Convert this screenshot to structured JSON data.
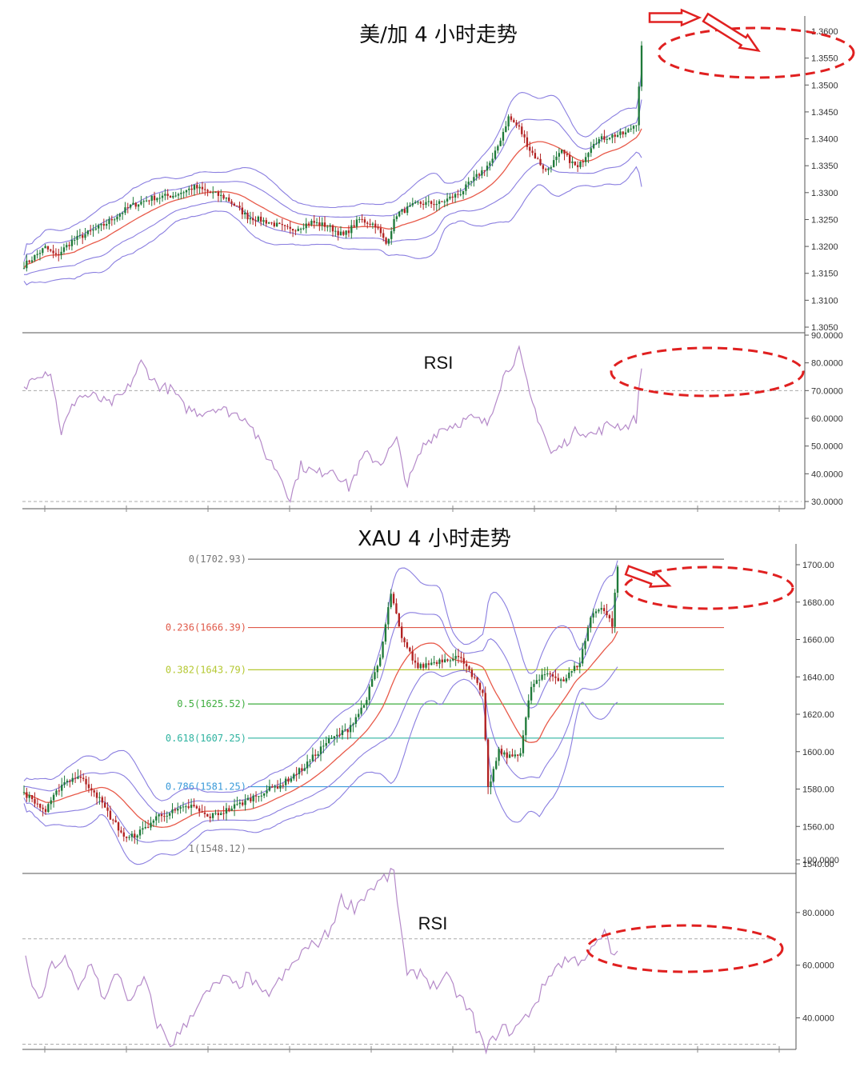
{
  "colors": {
    "bull": "#1f7a3a",
    "bear": "#b22222",
    "band": "#8a7ee0",
    "mid": "#e85a4a",
    "rsi": "#b58ac9",
    "annot": "#e02020",
    "axis": "#444444",
    "grid_dash": "#aaaaaa"
  },
  "chart_data": [
    {
      "type": "candlestick",
      "title": "美/加 4 小时走势",
      "ylim": [
        1.305,
        1.36
      ],
      "yticks": [
        "1.3050",
        "1.3100",
        "1.3150",
        "1.3200",
        "1.3250",
        "1.3300",
        "1.3350",
        "1.3400",
        "1.3450",
        "1.3500",
        "1.3550",
        "1.3600"
      ],
      "indicators": [
        "bollinger",
        "moving-average"
      ],
      "close_anchors": [
        [
          0,
          1.3165
        ],
        [
          8,
          1.3198
        ],
        [
          12,
          1.3182
        ],
        [
          18,
          1.321
        ],
        [
          30,
          1.324
        ],
        [
          40,
          1.3275
        ],
        [
          48,
          1.329
        ],
        [
          56,
          1.3295
        ],
        [
          64,
          1.331
        ],
        [
          70,
          1.33
        ],
        [
          76,
          1.329
        ],
        [
          84,
          1.3255
        ],
        [
          92,
          1.3245
        ],
        [
          100,
          1.323
        ],
        [
          108,
          1.3245
        ],
        [
          114,
          1.3238
        ],
        [
          120,
          1.322
        ],
        [
          126,
          1.325
        ],
        [
          132,
          1.324
        ],
        [
          136,
          1.3205
        ],
        [
          140,
          1.326
        ],
        [
          148,
          1.328
        ],
        [
          156,
          1.328
        ],
        [
          164,
          1.33
        ],
        [
          170,
          1.333
        ],
        [
          176,
          1.336
        ],
        [
          182,
          1.344
        ],
        [
          186,
          1.342
        ],
        [
          190,
          1.338
        ],
        [
          196,
          1.334
        ],
        [
          202,
          1.3375
        ],
        [
          208,
          1.3345
        ],
        [
          214,
          1.3395
        ],
        [
          220,
          1.3405
        ],
        [
          226,
          1.341
        ],
        [
          230,
          1.343
        ],
        [
          232,
          1.357
        ]
      ]
    },
    {
      "type": "line",
      "title": "RSI",
      "ylim": [
        30,
        90
      ],
      "yticks": [
        "30.0000",
        "40.0000",
        "50.0000",
        "60.0000",
        "70.0000",
        "80.0000",
        "90.0000"
      ],
      "reference_lines": [
        70,
        30
      ],
      "anchors": [
        [
          0,
          70
        ],
        [
          4,
          76
        ],
        [
          10,
          77
        ],
        [
          14,
          55
        ],
        [
          20,
          68
        ],
        [
          26,
          68
        ],
        [
          32,
          65
        ],
        [
          38,
          69
        ],
        [
          44,
          80
        ],
        [
          50,
          72
        ],
        [
          56,
          70
        ],
        [
          60,
          64
        ],
        [
          66,
          62
        ],
        [
          72,
          64
        ],
        [
          78,
          62
        ],
        [
          84,
          60
        ],
        [
          90,
          48
        ],
        [
          96,
          40
        ],
        [
          100,
          31
        ],
        [
          104,
          43
        ],
        [
          110,
          40
        ],
        [
          116,
          42
        ],
        [
          122,
          35
        ],
        [
          128,
          47
        ],
        [
          134,
          44
        ],
        [
          140,
          52
        ],
        [
          144,
          36
        ],
        [
          150,
          50
        ],
        [
          156,
          56
        ],
        [
          162,
          58
        ],
        [
          168,
          60
        ],
        [
          174,
          58
        ],
        [
          180,
          75
        ],
        [
          186,
          84
        ],
        [
          190,
          68
        ],
        [
          194,
          58
        ],
        [
          198,
          47
        ],
        [
          202,
          50
        ],
        [
          208,
          56
        ],
        [
          214,
          54
        ],
        [
          220,
          58
        ],
        [
          226,
          57
        ],
        [
          230,
          60
        ],
        [
          232,
          79
        ]
      ]
    },
    {
      "type": "candlestick",
      "title": "XAU 4 小时走势",
      "ylim": [
        1540,
        1700
      ],
      "yticks": [
        "1540.00",
        "1560.00",
        "1580.00",
        "1600.00",
        "1620.00",
        "1640.00",
        "1660.00",
        "1680.00",
        "1700.00"
      ],
      "indicators": [
        "bollinger",
        "moving-average",
        "fibonacci"
      ],
      "fib_levels": [
        {
          "label": "0(1702.93)",
          "value": 1702.93,
          "color": "#777777"
        },
        {
          "label": "0.236(1666.39)",
          "value": 1666.39,
          "color": "#e05a4a"
        },
        {
          "label": "0.382(1643.79)",
          "value": 1643.79,
          "color": "#b5c832"
        },
        {
          "label": "0.5(1625.52)",
          "value": 1625.52,
          "color": "#3fae3f"
        },
        {
          "label": "0.618(1607.25)",
          "value": 1607.25,
          "color": "#2fb3a0"
        },
        {
          "label": "0.786(1581.25)",
          "value": 1581.25,
          "color": "#3a9ad9"
        },
        {
          "label": "1(1548.12)",
          "value": 1548.12,
          "color": "#777777"
        }
      ],
      "close_anchors": [
        [
          0,
          1578
        ],
        [
          8,
          1568
        ],
        [
          14,
          1583
        ],
        [
          20,
          1587
        ],
        [
          26,
          1579
        ],
        [
          32,
          1565
        ],
        [
          38,
          1553
        ],
        [
          44,
          1558
        ],
        [
          50,
          1566
        ],
        [
          56,
          1568
        ],
        [
          62,
          1571
        ],
        [
          68,
          1565
        ],
        [
          74,
          1568
        ],
        [
          80,
          1572
        ],
        [
          88,
          1578
        ],
        [
          96,
          1583
        ],
        [
          104,
          1592
        ],
        [
          112,
          1605
        ],
        [
          120,
          1612
        ],
        [
          126,
          1625
        ],
        [
          132,
          1650
        ],
        [
          136,
          1685
        ],
        [
          140,
          1660
        ],
        [
          146,
          1645
        ],
        [
          152,
          1648
        ],
        [
          160,
          1651
        ],
        [
          164,
          1647
        ],
        [
          170,
          1630
        ],
        [
          172,
          1580
        ],
        [
          176,
          1600
        ],
        [
          180,
          1597
        ],
        [
          184,
          1600
        ],
        [
          188,
          1635
        ],
        [
          194,
          1642
        ],
        [
          200,
          1638
        ],
        [
          206,
          1648
        ],
        [
          210,
          1672
        ],
        [
          214,
          1678
        ],
        [
          218,
          1668
        ],
        [
          220,
          1700
        ]
      ]
    },
    {
      "type": "line",
      "title": "RSI",
      "ylim": [
        25,
        100
      ],
      "yticks": [
        "40.0000",
        "60.0000",
        "80.0000",
        "100.0000"
      ],
      "reference_lines": [
        70,
        30
      ],
      "anchors": [
        [
          0,
          62
        ],
        [
          4,
          45
        ],
        [
          8,
          60
        ],
        [
          12,
          62
        ],
        [
          16,
          50
        ],
        [
          20,
          62
        ],
        [
          24,
          46
        ],
        [
          28,
          58
        ],
        [
          32,
          45
        ],
        [
          36,
          55
        ],
        [
          40,
          38
        ],
        [
          44,
          30
        ],
        [
          48,
          36
        ],
        [
          52,
          45
        ],
        [
          56,
          50
        ],
        [
          60,
          55
        ],
        [
          64,
          52
        ],
        [
          68,
          56
        ],
        [
          72,
          48
        ],
        [
          76,
          52
        ],
        [
          80,
          58
        ],
        [
          84,
          65
        ],
        [
          88,
          68
        ],
        [
          92,
          72
        ],
        [
          96,
          85
        ],
        [
          100,
          82
        ],
        [
          104,
          88
        ],
        [
          108,
          92
        ],
        [
          112,
          95
        ],
        [
          116,
          55
        ],
        [
          120,
          58
        ],
        [
          124,
          52
        ],
        [
          128,
          55
        ],
        [
          132,
          48
        ],
        [
          136,
          40
        ],
        [
          140,
          27
        ],
        [
          144,
          36
        ],
        [
          148,
          35
        ],
        [
          152,
          40
        ],
        [
          156,
          48
        ],
        [
          160,
          58
        ],
        [
          164,
          62
        ],
        [
          168,
          62
        ],
        [
          172,
          65
        ],
        [
          176,
          72
        ],
        [
          178,
          65
        ],
        [
          180,
          64
        ]
      ]
    }
  ]
}
